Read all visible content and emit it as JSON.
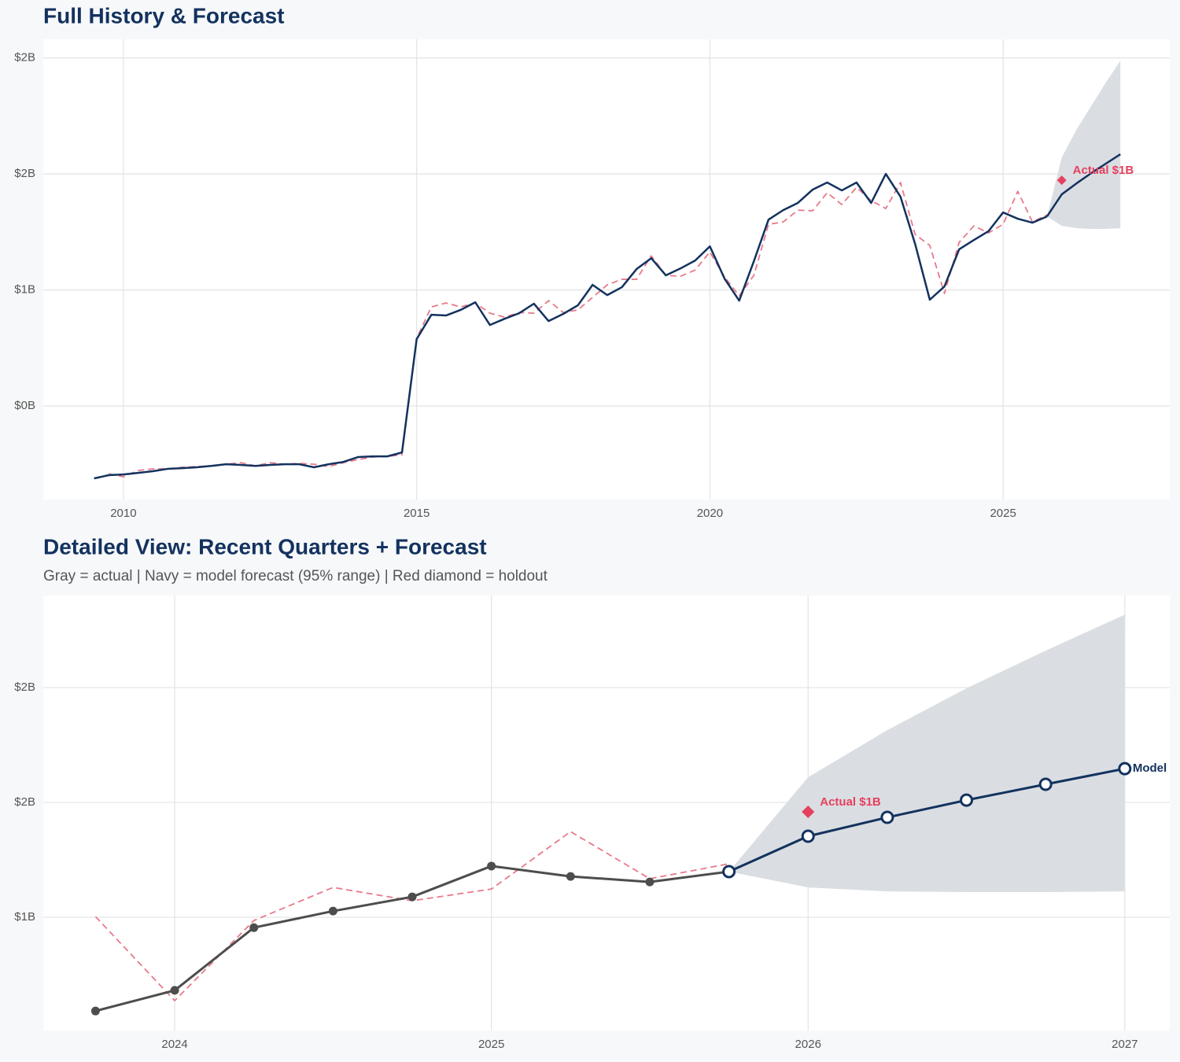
{
  "chart_data": [
    {
      "type": "line",
      "title": "Full History & Forecast",
      "xlim": [
        2008.633,
        2027.842
      ],
      "ylim": [
        0.097,
        2.08
      ],
      "xticks": [
        2010,
        2015,
        2020,
        2025
      ],
      "yticks": [
        {
          "value": 0.5,
          "label": "$0B"
        },
        {
          "value": 1,
          "label": "$1B"
        },
        {
          "value": 1.5,
          "label": "$2B"
        },
        {
          "value": 2,
          "label": "$2B"
        }
      ],
      "grid": true,
      "x": [
        2009.5,
        2009.75,
        2010,
        2010.25,
        2010.5,
        2010.75,
        2011,
        2011.25,
        2011.5,
        2011.75,
        2012,
        2012.25,
        2012.5,
        2012.75,
        2013,
        2013.25,
        2013.5,
        2013.75,
        2014,
        2014.25,
        2014.5,
        2014.75,
        2015,
        2015.25,
        2015.5,
        2015.75,
        2016,
        2016.25,
        2016.5,
        2016.75,
        2017,
        2017.25,
        2017.5,
        2017.75,
        2018,
        2018.25,
        2018.5,
        2018.75,
        2019,
        2019.25,
        2019.5,
        2019.75,
        2020,
        2020.25,
        2020.5,
        2020.75,
        2021,
        2021.25,
        2021.5,
        2021.75,
        2022,
        2022.25,
        2022.5,
        2022.75,
        2023,
        2023.25,
        2023.5,
        2023.75,
        2024,
        2024.25,
        2024.5,
        2024.75,
        2025,
        2025.25,
        2025.5,
        2025.75
      ],
      "band": {
        "color": "#dadee3",
        "x": [
          2025.75,
          2026,
          2026.25,
          2026.5,
          2026.75,
          2027
        ],
        "upper": [
          1.317,
          1.571,
          1.69,
          1.792,
          1.893,
          1.988
        ],
        "lower": [
          1.317,
          1.276,
          1.266,
          1.263,
          1.263,
          1.266
        ]
      },
      "series": [
        {
          "color": "#e8798a",
          "dash": true,
          "values": [
            null,
            0.208,
            0.195,
            0.222,
            0.229,
            0.229,
            0.236,
            0.239,
            0.242,
            0.249,
            0.256,
            0.242,
            0.256,
            0.249,
            0.253,
            0.249,
            0.239,
            0.256,
            0.269,
            0.28,
            0.283,
            0.29,
            0.792,
            0.927,
            0.944,
            0.927,
            0.944,
            0.9,
            0.883,
            0.903,
            0.9,
            0.954,
            0.903,
            0.914,
            0.968,
            1.022,
            1.046,
            1.046,
            1.147,
            1.063,
            1.059,
            1.086,
            1.164,
            1.056,
            0.975,
            1.063,
            1.283,
            1.293,
            1.344,
            1.341,
            1.419,
            1.368,
            1.442,
            1.385,
            1.351,
            1.463,
            1.239,
            1.192,
            0.985,
            1.205,
            1.276,
            1.246,
            1.283,
            1.425,
            1.293,
            1.324
          ]
        },
        {
          "color": "#13325e",
          "values": [
            0.188,
            0.202,
            0.205,
            0.212,
            0.219,
            0.229,
            0.232,
            0.236,
            0.242,
            0.249,
            0.246,
            0.242,
            0.246,
            0.249,
            0.249,
            0.236,
            0.249,
            0.259,
            0.28,
            0.283,
            0.283,
            0.3,
            0.788,
            0.893,
            0.89,
            0.914,
            0.947,
            0.849,
            0.876,
            0.9,
            0.941,
            0.866,
            0.897,
            0.934,
            1.022,
            0.978,
            1.012,
            1.09,
            1.137,
            1.063,
            1.093,
            1.127,
            1.188,
            1.049,
            0.954,
            1.124,
            1.303,
            1.344,
            1.375,
            1.432,
            1.463,
            1.429,
            1.463,
            1.375,
            1.5,
            1.402,
            1.198,
            0.958,
            1.015,
            1.175,
            1.215,
            1.253,
            1.334,
            1.307,
            1.29,
            1.317
          ]
        },
        {
          "color": "#13325e",
          "x": [
            2025.75,
            2026,
            2026.25,
            2026.5,
            2026.75,
            2027
          ],
          "values": [
            1.317,
            1.412,
            1.459,
            1.503,
            1.544,
            1.585
          ]
        }
      ],
      "holdout": {
        "x": 2026,
        "value": 1.473,
        "label": "Actual $1B",
        "color": "#e5405e"
      }
    },
    {
      "type": "line",
      "title": "Detailed View: Recent Quarters + Forecast",
      "subtitle": "Gray = actual  |  Navy = model forecast (95% range)  |  Red diamond = holdout",
      "xlim": [
        2023.585,
        2027.142
      ],
      "ylim": [
        0.507,
        2.401
      ],
      "xticks": [
        2024,
        2025,
        2026,
        2027
      ],
      "yticks": [
        {
          "value": 1,
          "label": "$1B"
        },
        {
          "value": 1.5,
          "label": "$2B"
        },
        {
          "value": 2,
          "label": "$2B"
        }
      ],
      "grid": true,
      "x": [
        2023.75,
        2024,
        2024.25,
        2024.5,
        2024.75,
        2025,
        2025.25,
        2025.5,
        2025.75
      ],
      "band": {
        "color": "#dadee3",
        "x": [
          2025.75,
          2026,
          2026.25,
          2026.5,
          2026.75,
          2027
        ],
        "upper": [
          1.199,
          1.61,
          1.815,
          1.997,
          2.161,
          2.318
        ],
        "lower": [
          1.199,
          1.13,
          1.113,
          1.11,
          1.11,
          1.113
        ]
      },
      "series": [
        {
          "color": "#e8798a",
          "dash": true,
          "values": [
            1.003,
            0.637,
            0.986,
            1.13,
            1.072,
            1.123,
            1.373,
            1.168,
            1.233
          ]
        },
        {
          "color": "#4d4d4d",
          "marker": "dot",
          "values": [
            0.592,
            0.682,
            0.955,
            1.027,
            1.089,
            1.223,
            1.178,
            1.154,
            1.199
          ]
        },
        {
          "name": "Model",
          "color": "#13325e",
          "marker": "ring",
          "x": [
            2025.75,
            2026,
            2026.25,
            2026.5,
            2026.75,
            2027
          ],
          "values": [
            1.199,
            1.353,
            1.435,
            1.51,
            1.579,
            1.647
          ]
        }
      ],
      "holdout": {
        "x": 2026,
        "value": 1.459,
        "label": "Actual $1B",
        "color": "#e5405e"
      }
    }
  ]
}
